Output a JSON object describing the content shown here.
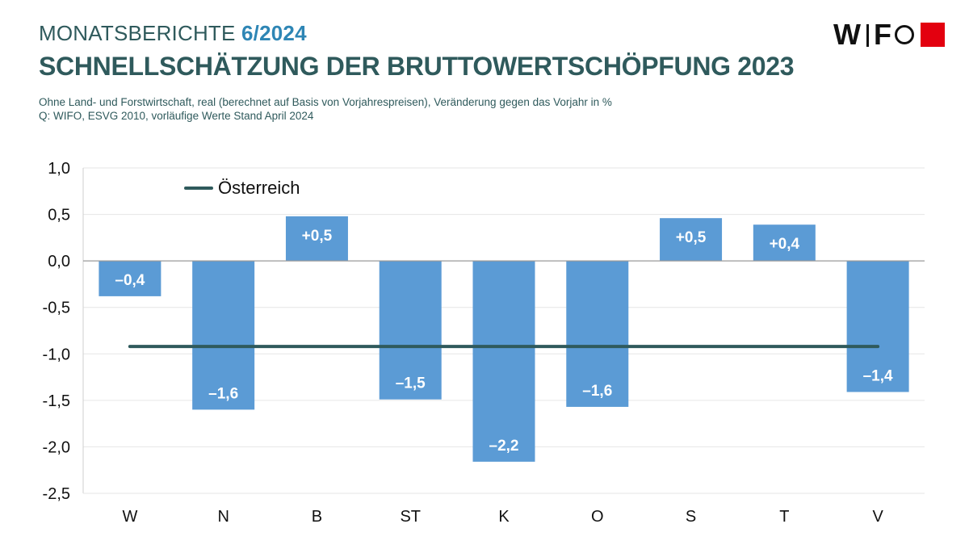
{
  "header": {
    "series_label": "MONATSBERICHTE",
    "issue": "6/2024",
    "title": "SCHNELLSCHÄTZUNG DER BRUTTOWERTSCHÖPFUNG 2023",
    "subtitle_line1": "Ohne Land- und Forstwirtschaft, real (berechnet auf Basis von Vorjahrespreisen), Veränderung gegen das Vorjahr in %",
    "subtitle_line2": "Q: WIFO, ESVG 2010, vorläufige Werte Stand April 2024"
  },
  "logo": {
    "text": "WIFO",
    "icon": "wifo-logo-icon",
    "accent_color": "#e3000f"
  },
  "chart_data": {
    "type": "bar",
    "categories": [
      "W",
      "N",
      "B",
      "ST",
      "K",
      "O",
      "S",
      "T",
      "V"
    ],
    "values": [
      -0.38,
      -1.6,
      0.48,
      -1.49,
      -2.16,
      -1.57,
      0.46,
      0.39,
      -1.41
    ],
    "data_labels": [
      "–0,4",
      "–1,6",
      "+0,5",
      "–1,5",
      "–2,2",
      "–1,6",
      "+0,5",
      "+0,4",
      "–1,4"
    ],
    "ylim": [
      -2.5,
      1.0
    ],
    "yticks": [
      1.0,
      0.5,
      0.0,
      -0.5,
      -1.0,
      -1.5,
      -2.0,
      -2.5
    ],
    "ytick_labels": [
      "1,0",
      "0,5",
      "0,0",
      "-0,5",
      "-1,0",
      "-1,5",
      "-2,0",
      "-2,5"
    ],
    "reference_line": {
      "name": "Österreich",
      "value": -0.92,
      "color": "#2f5a5c"
    },
    "bar_color": "#5b9bd5",
    "grid": true,
    "legend_position": "top-left"
  }
}
